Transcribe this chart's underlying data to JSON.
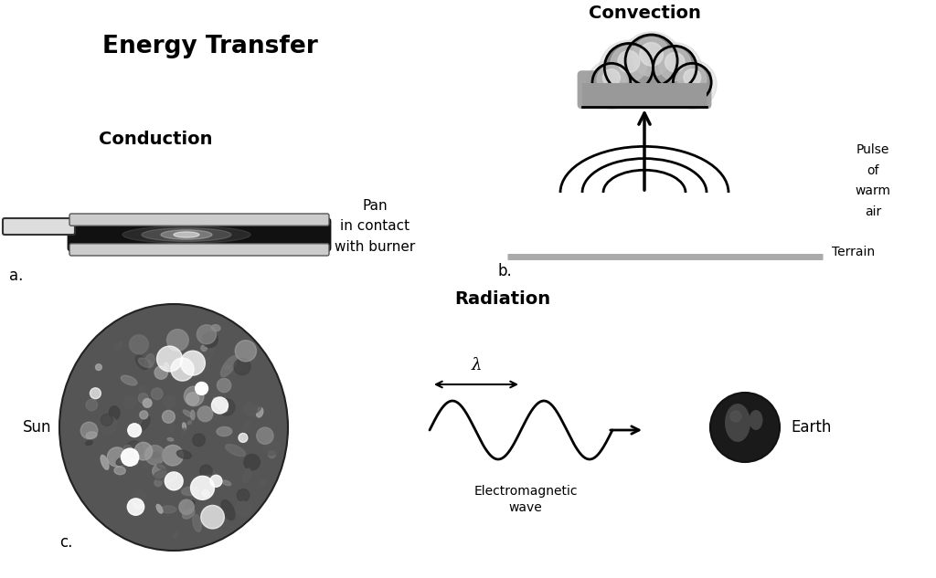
{
  "title": "Energy Transfer",
  "bg_color": "#ffffff",
  "conduction_label": "Conduction",
  "convection_label": "Convection",
  "radiation_label": "Radiation",
  "label_a": "a.",
  "label_b": "b.",
  "label_c": "c.",
  "pan_text": "Pan\nin contact\nwith burner",
  "pulse_text": "Pulse\nof\nwarm\nair",
  "terrain_text": "Terrain",
  "sun_text": "Sun",
  "earth_text": "Earth",
  "em_text": "Electromagnetic\nwave",
  "lambda_text": "λ"
}
